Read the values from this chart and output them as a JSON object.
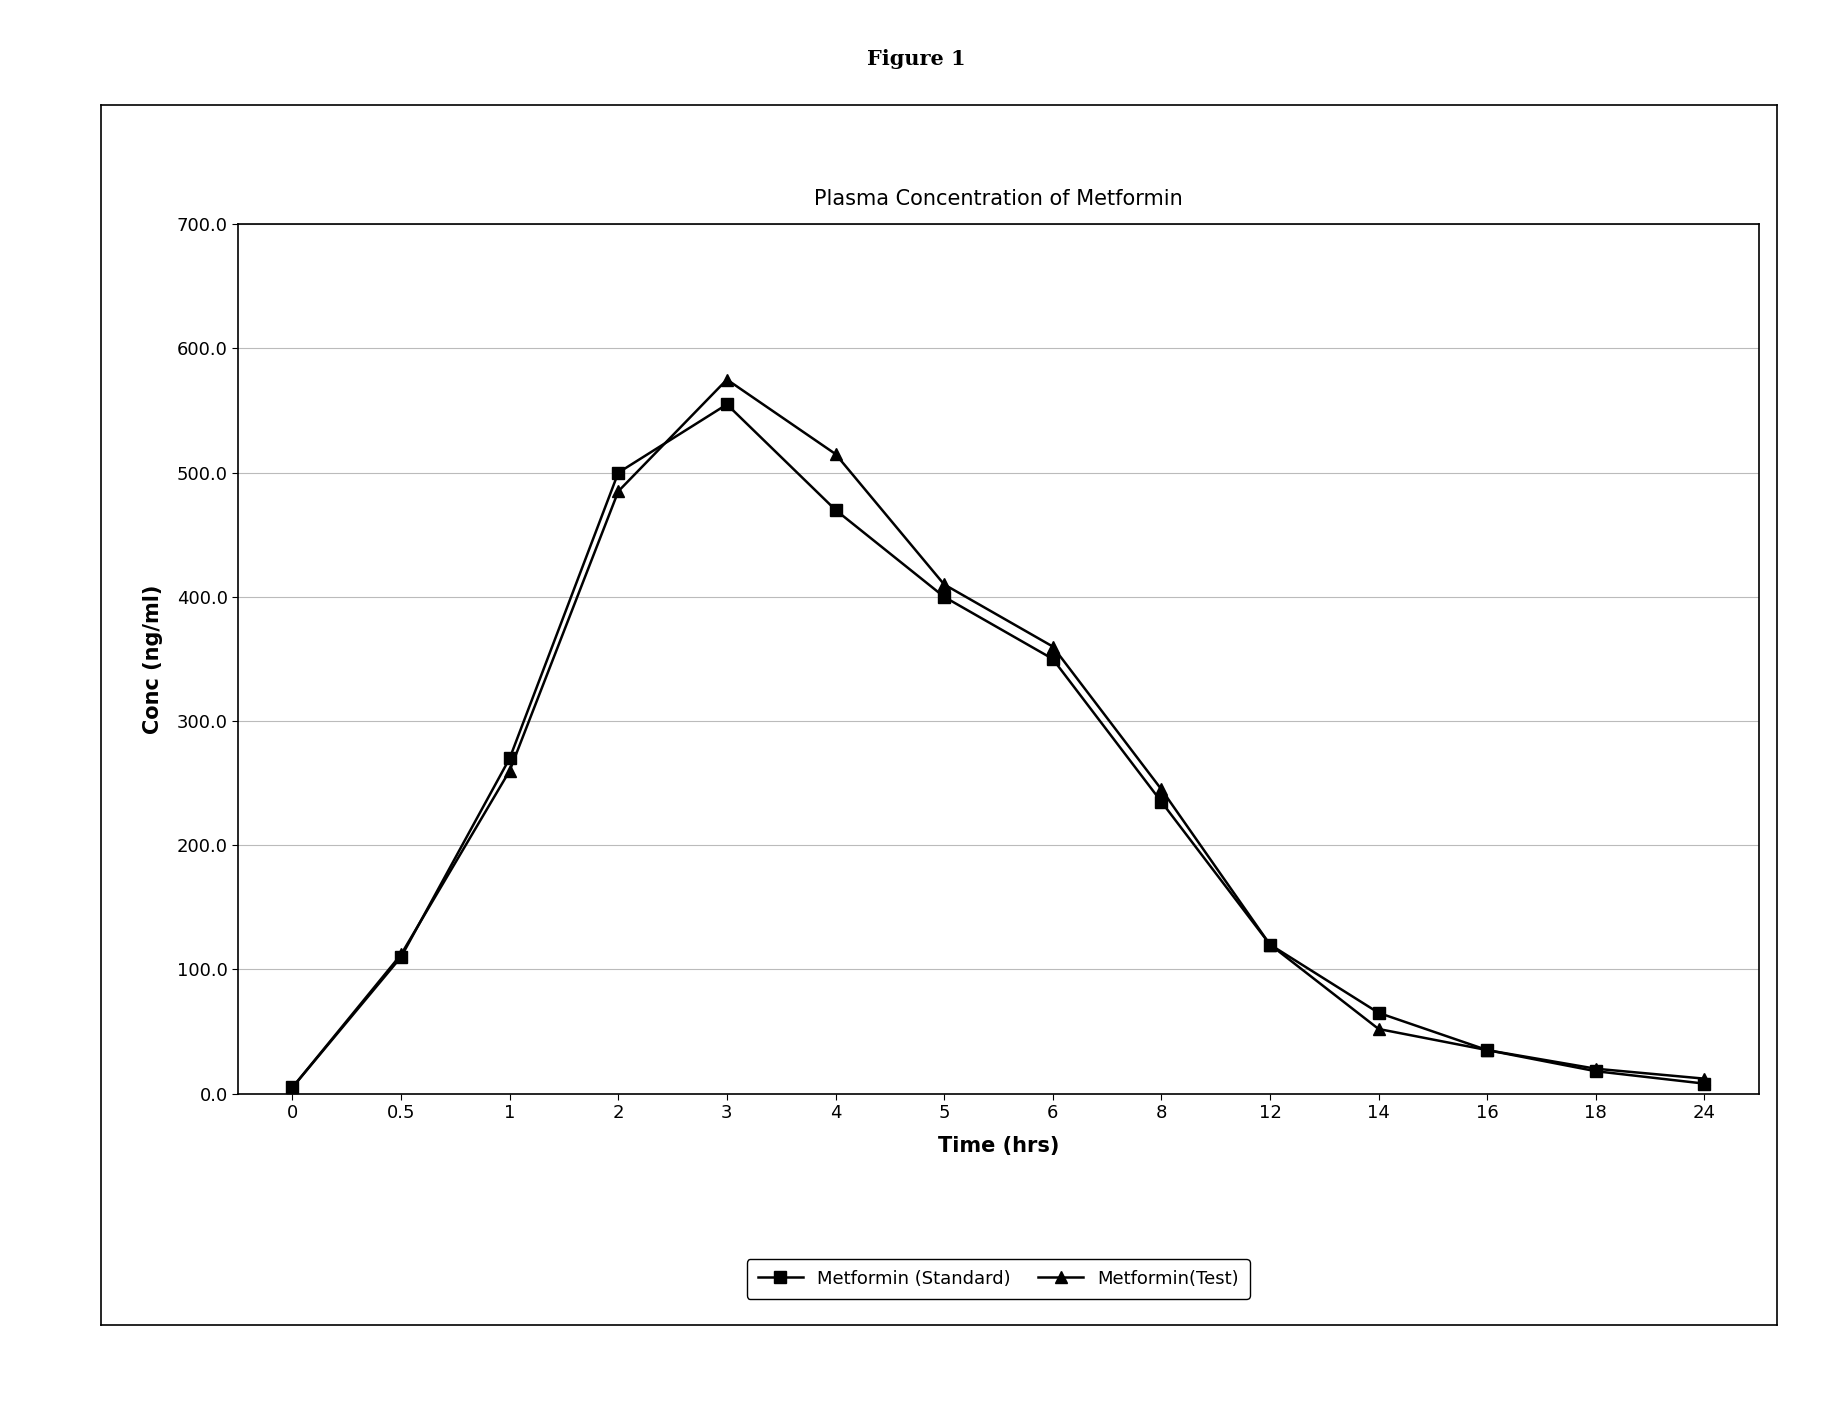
{
  "title": "Plasma Concentration of Metformin",
  "figure_title": "Figure 1",
  "xlabel": "Time (hrs)",
  "ylabel": "Conc (ng/ml)",
  "ylim": [
    0,
    700
  ],
  "yticks": [
    0.0,
    100.0,
    200.0,
    300.0,
    400.0,
    500.0,
    600.0,
    700.0
  ],
  "xtick_labels": [
    "0",
    "0.5",
    "1",
    "2",
    "3",
    "4",
    "5",
    "6",
    "8",
    "12",
    "14",
    "16",
    "18",
    "24"
  ],
  "standard_y": [
    5,
    110,
    270,
    500,
    555,
    470,
    400,
    350,
    235,
    120,
    65,
    35,
    18,
    8
  ],
  "test_y": [
    5,
    112,
    260,
    485,
    575,
    515,
    410,
    360,
    245,
    120,
    52,
    35,
    20,
    12
  ],
  "standard_label": "Metformin (Standard)",
  "test_label": "Metformin(Test)",
  "line_color": "#000000",
  "background_color": "#ffffff",
  "figure_bg": "#ffffff",
  "title_fontsize": 15,
  "axis_label_fontsize": 15,
  "tick_fontsize": 13,
  "legend_fontsize": 13,
  "figure_title_fontsize": 15
}
